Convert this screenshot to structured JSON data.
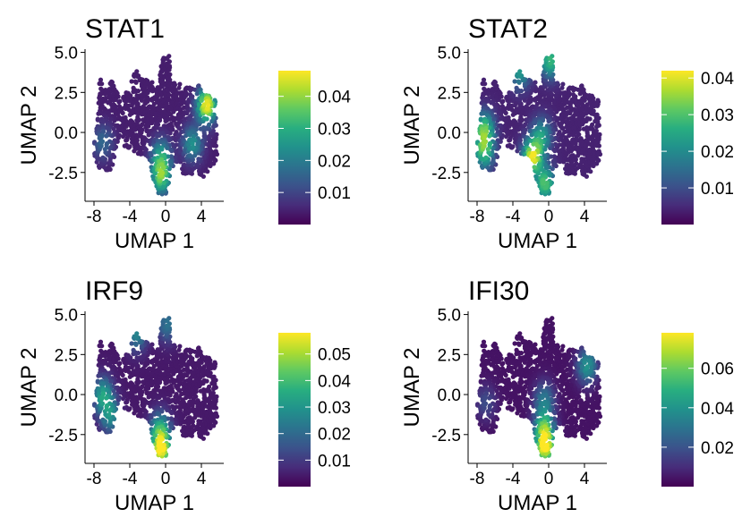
{
  "chart_data": [
    {
      "type": "scatter",
      "title": "STAT1",
      "xlabel": "UMAP 1",
      "ylabel": "UMAP 2",
      "xlim": [
        -9,
        6.5
      ],
      "ylim": [
        -4.3,
        5.2
      ],
      "x_ticks": [
        -8,
        -4,
        0,
        4
      ],
      "x_tick_labels": [
        "-8",
        "-4",
        "0",
        "4"
      ],
      "y_ticks": [
        5,
        2.5,
        0,
        -2.5
      ],
      "y_tick_labels": [
        "5.0",
        "2.5",
        "0.0",
        "-2.5"
      ],
      "colorbar": {
        "min": 0,
        "max": 0.048,
        "ticks": [
          0.04,
          0.03,
          0.02,
          0.01
        ],
        "tick_labels": [
          "0.04",
          "0.03",
          "0.02",
          "0.01"
        ]
      },
      "hotspots": [
        {
          "x": 4.6,
          "y": 1.7,
          "value": 0.048
        },
        {
          "x": -0.5,
          "y": -2.8,
          "value": 0.035
        },
        {
          "x": 3.0,
          "y": -0.7,
          "value": 0.024
        },
        {
          "x": -0.5,
          "y": -1.5,
          "value": 0.026
        },
        {
          "x": -7.0,
          "y": -0.6,
          "value": 0.016
        }
      ],
      "background_value": 0.004
    },
    {
      "type": "scatter",
      "title": "STAT2",
      "xlabel": "UMAP 1",
      "ylabel": "UMAP 2",
      "xlim": [
        -9,
        6.5
      ],
      "ylim": [
        -4.3,
        5.2
      ],
      "x_ticks": [
        -8,
        -4,
        0,
        4
      ],
      "x_tick_labels": [
        "-8",
        "-4",
        "0",
        "4"
      ],
      "y_ticks": [
        5,
        2.5,
        0,
        -2.5
      ],
      "y_tick_labels": [
        "5.0",
        "2.5",
        "0.0",
        "-2.5"
      ],
      "colorbar": {
        "min": 0,
        "max": 0.042,
        "ticks": [
          0.04,
          0.03,
          0.02,
          0.01
        ],
        "tick_labels": [
          "0.04",
          "0.03",
          "0.02",
          "0.01"
        ]
      },
      "hotspots": [
        {
          "x": -1.8,
          "y": -1.5,
          "value": 0.04
        },
        {
          "x": -7.2,
          "y": 0.2,
          "value": 0.03
        },
        {
          "x": -7.2,
          "y": -1.2,
          "value": 0.028
        },
        {
          "x": -0.4,
          "y": -3.2,
          "value": 0.03
        },
        {
          "x": 0.2,
          "y": 4.5,
          "value": 0.028
        },
        {
          "x": -3.2,
          "y": 3.8,
          "value": 0.022
        },
        {
          "x": -0.8,
          "y": -0.2,
          "value": 0.022
        }
      ],
      "background_value": 0.004
    },
    {
      "type": "scatter",
      "title": "IRF9",
      "xlabel": "UMAP 1",
      "ylabel": "UMAP 2",
      "xlim": [
        -9,
        6.5
      ],
      "ylim": [
        -4.3,
        5.2
      ],
      "x_ticks": [
        -8,
        -4,
        0,
        4
      ],
      "x_tick_labels": [
        "-8",
        "-4",
        "0",
        "4"
      ],
      "y_ticks": [
        5,
        2.5,
        0,
        -2.5
      ],
      "y_tick_labels": [
        "5.0",
        "2.5",
        "0.0",
        "-2.5"
      ],
      "colorbar": {
        "min": 0,
        "max": 0.058,
        "ticks": [
          0.05,
          0.04,
          0.03,
          0.02,
          0.01
        ],
        "tick_labels": [
          "0.05",
          "0.04",
          "0.03",
          "0.02",
          "0.01"
        ]
      },
      "hotspots": [
        {
          "x": -0.5,
          "y": -3.5,
          "value": 0.055
        },
        {
          "x": -0.6,
          "y": -2.2,
          "value": 0.035
        },
        {
          "x": -7.0,
          "y": 0.0,
          "value": 0.032
        },
        {
          "x": -6.2,
          "y": -1.3,
          "value": 0.028
        },
        {
          "x": -3.2,
          "y": 3.8,
          "value": 0.026
        },
        {
          "x": 0.2,
          "y": 4.4,
          "value": 0.022
        }
      ],
      "background_value": 0.004
    },
    {
      "type": "scatter",
      "title": "IFI30",
      "xlabel": "UMAP 1",
      "ylabel": "UMAP 2",
      "xlim": [
        -9,
        6.5
      ],
      "ylim": [
        -4.3,
        5.2
      ],
      "x_ticks": [
        -8,
        -4,
        0,
        4
      ],
      "x_tick_labels": [
        "-8",
        "-4",
        "0",
        "4"
      ],
      "y_ticks": [
        5,
        2.5,
        0,
        -2.5
      ],
      "y_tick_labels": [
        "5.0",
        "2.5",
        "0.0",
        "-2.5"
      ],
      "colorbar": {
        "min": 0,
        "max": 0.078,
        "ticks": [
          0.06,
          0.04,
          0.02
        ],
        "tick_labels": [
          "0.06",
          "0.04",
          "0.02"
        ]
      },
      "hotspots": [
        {
          "x": -0.4,
          "y": -3.3,
          "value": 0.075
        },
        {
          "x": -0.5,
          "y": -2.0,
          "value": 0.05
        },
        {
          "x": 4.3,
          "y": 1.8,
          "value": 0.04
        },
        {
          "x": -0.5,
          "y": -0.3,
          "value": 0.03
        },
        {
          "x": -7.0,
          "y": -0.5,
          "value": 0.018
        }
      ],
      "background_value": 0.004
    }
  ]
}
